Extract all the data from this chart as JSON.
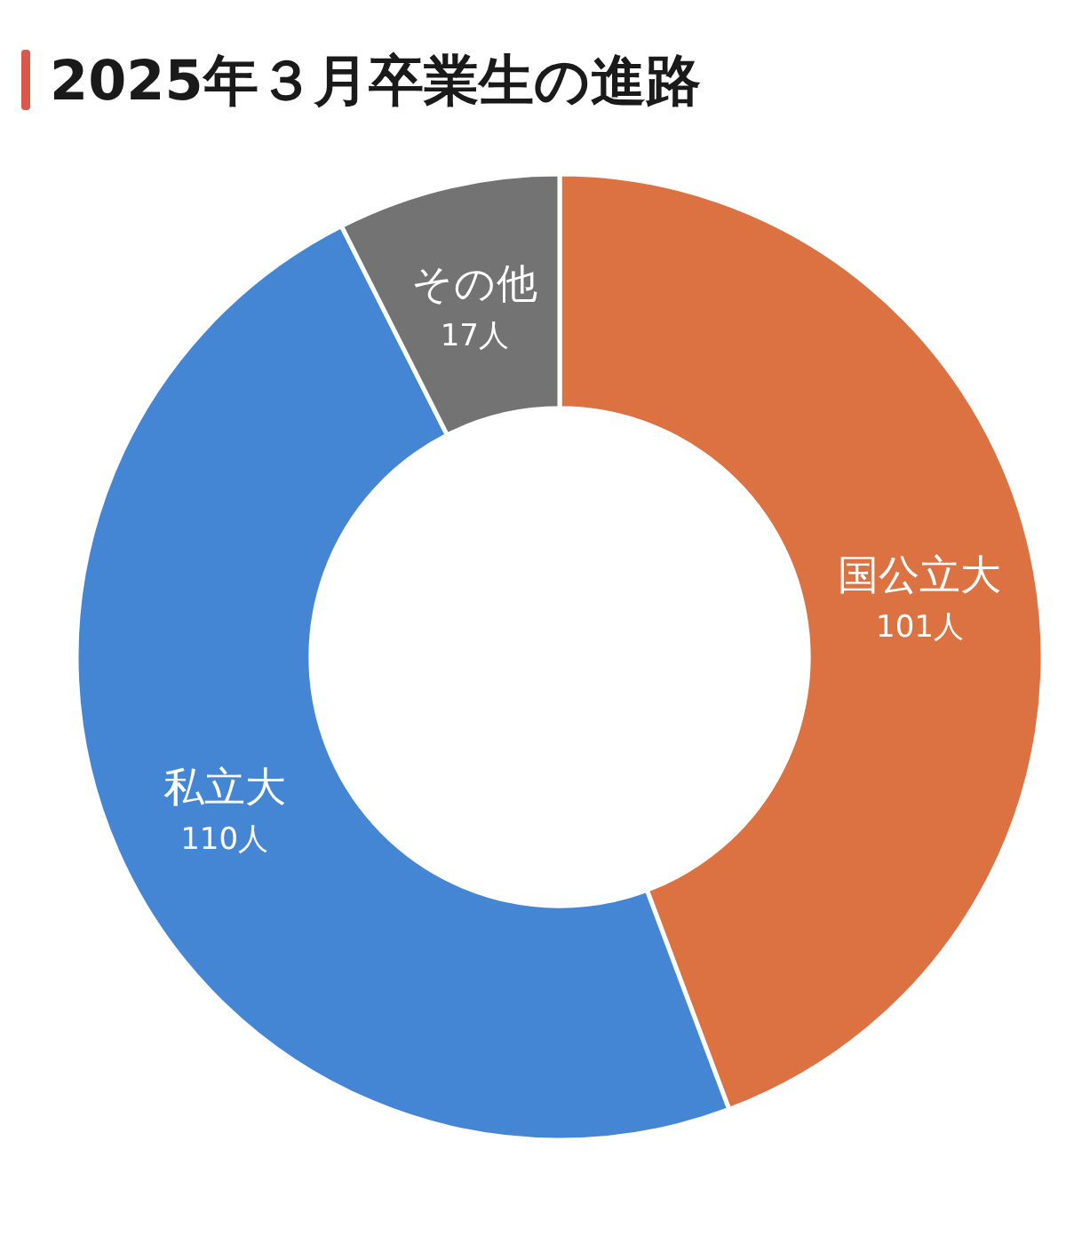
{
  "chart_data": {
    "type": "donut",
    "title": "2025年３月卒業生の進路",
    "categories": [
      "国公立大",
      "私立大",
      "その他"
    ],
    "values": [
      101,
      110,
      17
    ],
    "value_labels": [
      "101人",
      "110人",
      "17人"
    ],
    "colors": [
      "#dc7242",
      "#4486d3",
      "#737373"
    ],
    "legend": false
  }
}
